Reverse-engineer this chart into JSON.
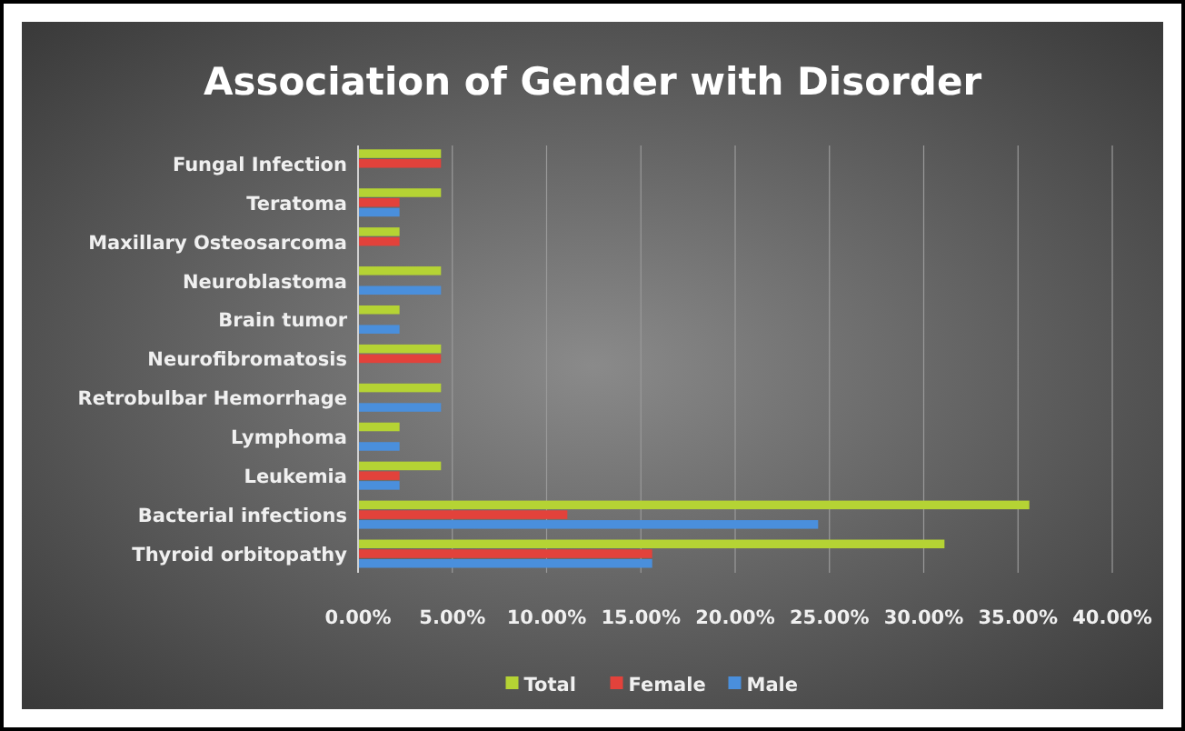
{
  "chart_data": {
    "type": "bar",
    "orientation": "horizontal",
    "title": "Association of Gender with Disorder",
    "categories": [
      "Fungal Infection",
      "Teratoma",
      "Maxillary Osteosarcoma",
      "Neuroblastoma",
      "Brain tumor",
      "Neurofibromatosis",
      "Retrobulbar Hemorrhage",
      "Lymphoma",
      "Leukemia",
      "Bacterial infections",
      "Thyroid orbitopathy"
    ],
    "series": [
      {
        "name": "Total",
        "color": "#b5d334",
        "values": [
          4.4,
          4.4,
          2.2,
          4.4,
          2.2,
          4.4,
          4.4,
          2.2,
          4.4,
          35.6,
          31.1
        ]
      },
      {
        "name": "Female",
        "color": "#e2423b",
        "values": [
          4.4,
          2.2,
          2.2,
          0,
          0,
          4.4,
          0,
          0,
          2.2,
          11.1,
          15.6
        ]
      },
      {
        "name": "Male",
        "color": "#4a8fdc",
        "values": [
          0,
          2.2,
          0,
          4.4,
          2.2,
          0,
          4.4,
          2.2,
          2.2,
          24.4,
          15.6
        ]
      }
    ],
    "xlim": [
      0,
      40
    ],
    "xticks": [
      {
        "value": 0,
        "label": "0.00%"
      },
      {
        "value": 5,
        "label": "5.00%"
      },
      {
        "value": 10,
        "label": "10.00%"
      },
      {
        "value": 15,
        "label": "15.00%"
      },
      {
        "value": 20,
        "label": "20.00%"
      },
      {
        "value": 25,
        "label": "25.00%"
      },
      {
        "value": 30,
        "label": "30.00%"
      },
      {
        "value": 35,
        "label": "35.00%"
      },
      {
        "value": 40,
        "label": "40.00%"
      }
    ],
    "grid": "x",
    "legend": "bottom"
  }
}
